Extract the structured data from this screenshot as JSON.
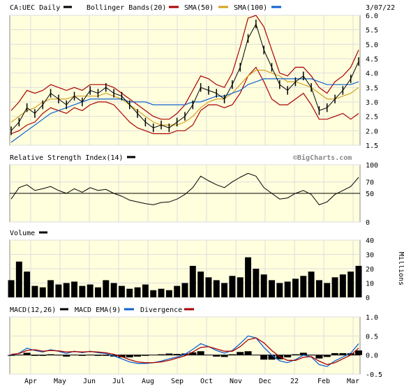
{
  "chart_data": [
    {
      "type": "line",
      "panel": "price",
      "title": "CA:UEC Daily",
      "date_label": "3/07/22",
      "legend": [
        {
          "label": "",
          "color": "#000000"
        },
        {
          "label": "Bollinger Bands(20)",
          "color": "#aa0000"
        },
        {
          "label": "SMA(50)",
          "color": "#d4a020"
        },
        {
          "label": "SMA(100)",
          "color": "#1060d0"
        }
      ],
      "watermark": "©BigCharts.com",
      "ylim": [
        1.5,
        6.0
      ],
      "yticks": [
        "1.5",
        "2.0",
        "2.5",
        "3.0",
        "3.5",
        "4.0",
        "4.5",
        "5.0",
        "5.5",
        "6.0"
      ],
      "xlabels": [
        "Apr",
        "May",
        "Jun",
        "Jul",
        "Aug",
        "Sep",
        "Oct",
        "Nov",
        "Dec",
        "22",
        "Feb",
        "Mar"
      ],
      "series": [
        {
          "name": "price",
          "color": "#000000",
          "values": [
            2.0,
            2.3,
            2.8,
            2.6,
            2.9,
            3.3,
            3.1,
            2.9,
            3.2,
            3.0,
            3.4,
            3.3,
            3.5,
            3.3,
            3.2,
            2.9,
            2.6,
            2.3,
            2.1,
            2.2,
            2.1,
            2.3,
            2.5,
            2.9,
            3.5,
            3.4,
            3.3,
            3.1,
            3.6,
            4.2,
            5.2,
            5.7,
            4.8,
            4.2,
            3.6,
            3.4,
            3.7,
            3.9,
            3.5,
            2.7,
            2.8,
            3.1,
            3.4,
            3.8,
            4.4
          ]
        },
        {
          "name": "bb_upper",
          "color": "#aa0000",
          "values": [
            2.7,
            3.0,
            3.4,
            3.3,
            3.4,
            3.6,
            3.5,
            3.4,
            3.5,
            3.4,
            3.6,
            3.6,
            3.6,
            3.5,
            3.3,
            3.1,
            2.9,
            2.7,
            2.5,
            2.4,
            2.4,
            2.6,
            2.9,
            3.4,
            3.9,
            3.8,
            3.6,
            3.5,
            4.0,
            4.9,
            5.9,
            6.0,
            5.6,
            4.8,
            4.0,
            3.9,
            4.2,
            4.2,
            3.9,
            3.5,
            3.3,
            3.7,
            3.9,
            4.2,
            4.8
          ]
        },
        {
          "name": "bb_lower",
          "color": "#aa0000",
          "values": [
            1.9,
            2.0,
            2.2,
            2.3,
            2.6,
            2.8,
            2.7,
            2.6,
            2.8,
            2.7,
            2.9,
            3.0,
            3.0,
            2.9,
            2.6,
            2.3,
            2.1,
            2.0,
            1.9,
            1.9,
            1.9,
            2.0,
            2.0,
            2.2,
            2.7,
            2.9,
            2.9,
            2.8,
            2.9,
            3.3,
            3.9,
            4.2,
            3.7,
            3.1,
            2.9,
            2.9,
            3.1,
            3.3,
            2.9,
            2.4,
            2.4,
            2.5,
            2.6,
            2.4,
            2.6
          ]
        },
        {
          "name": "sma50",
          "color": "#d4a020",
          "values": [
            2.3,
            2.5,
            2.7,
            2.8,
            3.0,
            3.1,
            3.1,
            3.1,
            3.2,
            3.2,
            3.2,
            3.2,
            3.3,
            3.2,
            3.1,
            2.9,
            2.7,
            2.5,
            2.3,
            2.2,
            2.2,
            2.2,
            2.3,
            2.5,
            2.8,
            3.0,
            3.1,
            3.1,
            3.3,
            3.6,
            3.9,
            4.1,
            4.1,
            4.0,
            3.9,
            3.7,
            3.7,
            3.6,
            3.5,
            3.3,
            3.1,
            3.1,
            3.2,
            3.3,
            3.5
          ]
        },
        {
          "name": "sma100",
          "color": "#1060d0",
          "values": [
            1.6,
            1.8,
            2.0,
            2.2,
            2.4,
            2.6,
            2.7,
            2.8,
            2.9,
            3.0,
            3.1,
            3.1,
            3.1,
            3.1,
            3.1,
            3.0,
            3.0,
            3.0,
            2.9,
            2.9,
            2.9,
            2.9,
            2.9,
            3.0,
            3.0,
            3.1,
            3.2,
            3.2,
            3.3,
            3.4,
            3.6,
            3.7,
            3.8,
            3.8,
            3.8,
            3.8,
            3.8,
            3.8,
            3.8,
            3.7,
            3.6,
            3.6,
            3.6,
            3.6,
            3.7
          ]
        }
      ]
    },
    {
      "type": "line",
      "panel": "rsi",
      "title": "Relative Strength Index(14)",
      "legend_color": "#000000",
      "ylim": [
        0,
        100
      ],
      "yticks": [
        "0",
        "50",
        "70",
        "100"
      ],
      "reference_line": 50,
      "series": [
        {
          "name": "rsi",
          "color": "#000000",
          "values": [
            40,
            60,
            65,
            55,
            58,
            62,
            55,
            50,
            58,
            52,
            60,
            55,
            57,
            50,
            45,
            38,
            35,
            32,
            30,
            34,
            35,
            40,
            48,
            60,
            80,
            72,
            65,
            60,
            70,
            78,
            85,
            80,
            60,
            50,
            40,
            42,
            50,
            55,
            48,
            30,
            35,
            48,
            55,
            62,
            78
          ]
        }
      ]
    },
    {
      "type": "bar",
      "panel": "volume",
      "title": "Volume",
      "legend_color": "#000000",
      "ylabel": "Millions",
      "ylim": [
        0,
        40
      ],
      "yticks": [
        "0",
        "10",
        "20",
        "30",
        "40"
      ],
      "series": [
        {
          "name": "volume",
          "color": "#000000",
          "values": [
            12,
            25,
            18,
            8,
            7,
            12,
            9,
            10,
            11,
            8,
            9,
            7,
            12,
            10,
            8,
            6,
            7,
            9,
            5,
            6,
            5,
            8,
            10,
            22,
            18,
            14,
            12,
            10,
            15,
            14,
            28,
            20,
            16,
            12,
            10,
            11,
            13,
            15,
            18,
            12,
            10,
            14,
            16,
            18,
            22
          ]
        }
      ]
    },
    {
      "type": "line",
      "panel": "macd",
      "title": "MACD(12,26)",
      "legend": [
        {
          "label": "MACD(12,26)",
          "color": "#000000"
        },
        {
          "label": "MACD EMA(9)",
          "color": "#1060d0"
        },
        {
          "label": "Divergence",
          "color": "#aa0000"
        }
      ],
      "divergence_color": "#000000",
      "ylim": [
        -0.5,
        1.0
      ],
      "yticks": [
        "-0.5",
        "0.0",
        "0.5",
        "1.0"
      ],
      "series": [
        {
          "name": "macd",
          "color": "#1060d0",
          "values": [
            0.0,
            0.05,
            0.18,
            0.12,
            0.08,
            0.14,
            0.1,
            0.04,
            0.1,
            0.06,
            0.1,
            0.06,
            0.04,
            -0.02,
            -0.1,
            -0.18,
            -0.22,
            -0.22,
            -0.2,
            -0.16,
            -0.1,
            -0.05,
            0.02,
            0.15,
            0.3,
            0.22,
            0.12,
            0.05,
            0.12,
            0.3,
            0.5,
            0.45,
            0.2,
            0.0,
            -0.15,
            -0.2,
            -0.12,
            0.0,
            -0.05,
            -0.25,
            -0.3,
            -0.15,
            -0.05,
            0.05,
            0.3
          ]
        },
        {
          "name": "macd_ema",
          "color": "#aa0000",
          "values": [
            0.02,
            0.04,
            0.12,
            0.14,
            0.1,
            0.12,
            0.11,
            0.08,
            0.09,
            0.08,
            0.09,
            0.08,
            0.06,
            0.02,
            -0.04,
            -0.12,
            -0.18,
            -0.2,
            -0.2,
            -0.18,
            -0.14,
            -0.08,
            -0.02,
            0.08,
            0.2,
            0.22,
            0.16,
            0.1,
            0.1,
            0.22,
            0.4,
            0.45,
            0.32,
            0.12,
            -0.04,
            -0.14,
            -0.14,
            -0.06,
            -0.04,
            -0.16,
            -0.25,
            -0.2,
            -0.1,
            0.0,
            0.18
          ]
        },
        {
          "name": "divergence",
          "color": "#000000",
          "values": [
            -0.02,
            0.01,
            0.06,
            -0.02,
            -0.02,
            0.02,
            -0.01,
            -0.04,
            0.01,
            -0.02,
            0.01,
            -0.02,
            -0.02,
            -0.04,
            -0.06,
            -0.06,
            -0.04,
            -0.02,
            0.0,
            0.02,
            0.04,
            0.03,
            0.04,
            0.07,
            0.1,
            0.0,
            -0.04,
            -0.05,
            0.02,
            0.08,
            0.1,
            0.0,
            -0.12,
            -0.12,
            -0.11,
            -0.06,
            0.02,
            0.06,
            -0.01,
            -0.09,
            -0.05,
            0.05,
            0.05,
            0.05,
            0.12
          ]
        }
      ]
    }
  ]
}
